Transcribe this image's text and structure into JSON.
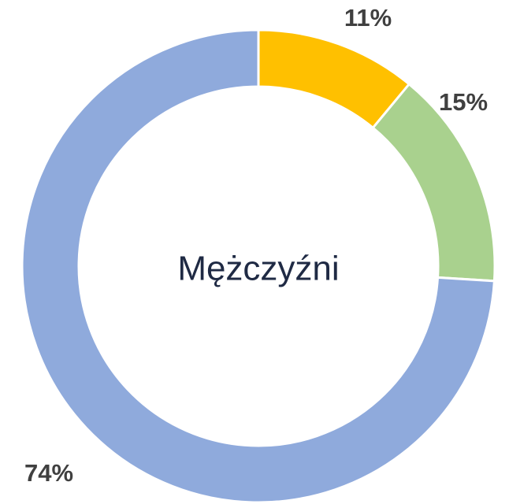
{
  "chart_data": {
    "type": "donut",
    "center_label": "Mężczyźni",
    "values": [
      11,
      15,
      74
    ],
    "value_labels": [
      "11%",
      "15%",
      "74%"
    ],
    "colors": [
      "#ffc000",
      "#a9d18e",
      "#8faadc"
    ]
  }
}
